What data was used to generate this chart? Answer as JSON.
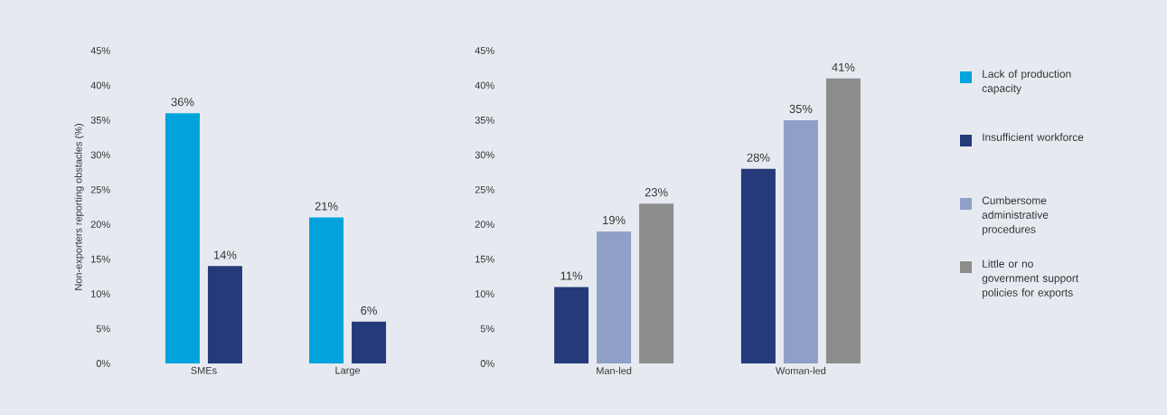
{
  "chart_data": [
    {
      "type": "bar",
      "ylabel": "Non-exporters reporting obstacles (%)",
      "categories": [
        "SMEs",
        "Large"
      ],
      "series": [
        {
          "name": "Lack of production capacity",
          "color": "#00a3dc",
          "values": [
            36,
            21
          ],
          "value_labels": [
            "36%",
            "21%"
          ]
        },
        {
          "name": "Insufficient workforce",
          "color": "#253a7a",
          "values": [
            14,
            6
          ],
          "value_labels": [
            "14%",
            "6%"
          ]
        }
      ],
      "legend": "right",
      "ylim": [
        0,
        45
      ],
      "yticks": [
        {
          "value": 0,
          "label": "0%"
        },
        {
          "value": 5,
          "label": "5%"
        },
        {
          "value": 10,
          "label": "10%"
        },
        {
          "value": 15,
          "label": "15%"
        },
        {
          "value": 20,
          "label": "20%"
        },
        {
          "value": 25,
          "label": "25%"
        },
        {
          "value": 30,
          "label": "30%"
        },
        {
          "value": 35,
          "label": "35%"
        },
        {
          "value": 40,
          "label": "40%"
        },
        {
          "value": 45,
          "label": "45%"
        }
      ]
    },
    {
      "type": "bar",
      "categories": [
        "Man-led",
        "Woman-led"
      ],
      "series": [
        {
          "color": "#253a7a",
          "values": [
            11,
            28
          ],
          "value_labels": [
            "11%",
            "28%"
          ]
        },
        {
          "name": "Cumbersome administrative procedures",
          "color": "#8f9fc8",
          "values": [
            19,
            35
          ],
          "value_labels": [
            "19%",
            "35%"
          ]
        },
        {
          "name": "Little or no government support policies for exports",
          "color": "#8c8c8c",
          "values": [
            23,
            41
          ],
          "value_labels": [
            "23%",
            "41%"
          ]
        }
      ],
      "ylim": [
        0,
        45
      ],
      "yticks": [
        {
          "value": 0,
          "label": "0%"
        },
        {
          "value": 5,
          "label": "5%"
        },
        {
          "value": 10,
          "label": "10%"
        },
        {
          "value": 15,
          "label": "15%"
        },
        {
          "value": 20,
          "label": "20%"
        },
        {
          "value": 25,
          "label": "25%"
        },
        {
          "value": 30,
          "label": "30%"
        },
        {
          "value": 35,
          "label": "35%"
        },
        {
          "value": 40,
          "label": "40%"
        },
        {
          "value": 45,
          "label": "45%"
        }
      ],
      "legend": "right"
    }
  ]
}
